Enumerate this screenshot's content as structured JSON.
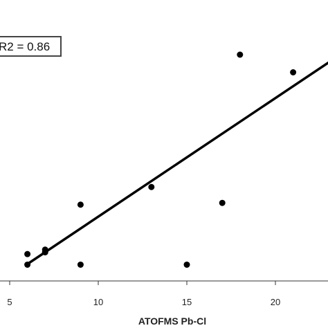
{
  "chart_data": {
    "type": "scatter",
    "xlabel": "ATOFMS Pb-Cl",
    "ylabel": "",
    "xlim": [
      4.9,
      23
    ],
    "xticks": [
      5,
      10,
      15,
      20
    ],
    "grid": false,
    "annotation": "R2 = 0.86",
    "points": [
      {
        "x": 6,
        "y": 0.7
      },
      {
        "x": 6,
        "y": 0.1
      },
      {
        "x": 7,
        "y": 0.95
      },
      {
        "x": 7,
        "y": 0.8
      },
      {
        "x": 9,
        "y": 3.5
      },
      {
        "x": 9,
        "y": 0.1
      },
      {
        "x": 13,
        "y": 4.5
      },
      {
        "x": 15,
        "y": 0.1
      },
      {
        "x": 17,
        "y": 3.6
      },
      {
        "x": 18,
        "y": 12.0
      },
      {
        "x": 21,
        "y": 11.0
      }
    ],
    "fit_line": {
      "slope": 0.672,
      "intercept": -3.9
    },
    "colors": {
      "points": "#000000",
      "line": "#000000"
    }
  }
}
